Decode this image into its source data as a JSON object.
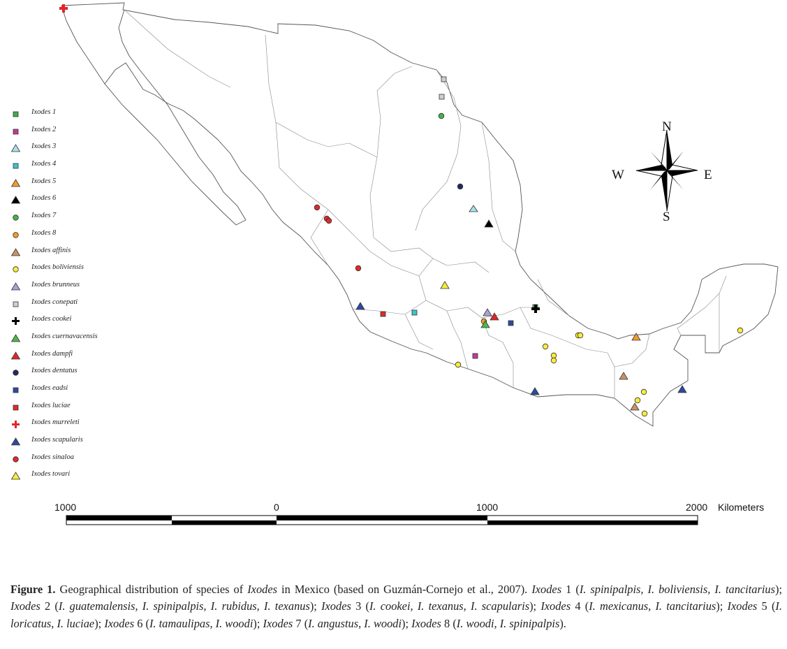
{
  "compass": {
    "n": "N",
    "s": "S",
    "e": "E",
    "w": "W"
  },
  "scale": {
    "ticks": [
      "1000",
      "0",
      "1000",
      "2000"
    ],
    "unit": "Kilometers"
  },
  "legend": [
    {
      "label": "Ixodes 1",
      "shape": "square",
      "color": "#3fae49"
    },
    {
      "label": "Ixodes 2",
      "shape": "square",
      "color": "#c03a9a"
    },
    {
      "label": "Ixodes 3",
      "shape": "triangle",
      "color": "#a9e0ee"
    },
    {
      "label": "Ixodes 4",
      "shape": "square",
      "color": "#3ec4cc"
    },
    {
      "label": "Ixodes 5",
      "shape": "triangle",
      "color": "#f39a2b"
    },
    {
      "label": "Ixodes 6",
      "shape": "triangle",
      "color": "#000000"
    },
    {
      "label": "Ixodes 7",
      "shape": "circle",
      "color": "#47b04a"
    },
    {
      "label": "Ixodes 8",
      "shape": "circle",
      "color": "#f39a2b"
    },
    {
      "label": "Ixodes affinis",
      "shape": "triangle",
      "color": "#c89266"
    },
    {
      "label": "Ixodes boliviensis",
      "shape": "circle",
      "color": "#f7ec3a"
    },
    {
      "label": "Ixodes brunneus",
      "shape": "triangle",
      "color": "#a8a2d6"
    },
    {
      "label": "Ixodes conepati",
      "shape": "square",
      "color": "#cfcfcf"
    },
    {
      "label": "Ixodes cookei",
      "shape": "cross",
      "color": "#000000"
    },
    {
      "label": "Ixodes cuernavacensis",
      "shape": "triangle",
      "color": "#4cb84a"
    },
    {
      "label": "Ixodes dampfi",
      "shape": "triangle",
      "color": "#e0262b"
    },
    {
      "label": "Ixodes dentatus",
      "shape": "circle",
      "color": "#1f2a66"
    },
    {
      "label": "Ixodes eadsi",
      "shape": "square",
      "color": "#2d4aa0"
    },
    {
      "label": "Ixodes luciae",
      "shape": "square",
      "color": "#e02a2a"
    },
    {
      "label": "Ixodes murreleti",
      "shape": "cross",
      "color": "#e0262b"
    },
    {
      "label": "Ixodes scapularis",
      "shape": "triangle",
      "color": "#2d4aa0"
    },
    {
      "label": "Ixodes sinaloa",
      "shape": "circle",
      "color": "#e02a2a"
    },
    {
      "label": "Ixodes tovari",
      "shape": "triangle",
      "color": "#f7ec3a"
    }
  ],
  "caption": {
    "figure_label": "Figure 1.",
    "text_1": " Geographical distribution of species of ",
    "genus": "Ixodes",
    "text_2": " in Mexico (based on Guzmán-Cornejo et al., 2007). ",
    "groups": [
      {
        "name": "Ixodes",
        "num": " 1 (",
        "species": "I. spinipalpis, I. boliviensis, I. tancitarius",
        "end": "); "
      },
      {
        "name": "Ixodes",
        "num": " 2 (",
        "species": "I. guatemalensis, I. spinipalpis, I. rubidus, I. texanus",
        "end": "); "
      },
      {
        "name": "Ixodes",
        "num": " 3 (",
        "species": "I. cookei, I. texanus, I. scapularis",
        "end": "); "
      },
      {
        "name": "Ixodes",
        "num": " 4 (",
        "species": "I. mexicanus, I. tancitarius",
        "end": "); "
      },
      {
        "name": "Ixodes",
        "num": " 5 (",
        "species": "I. loricatus, I. luciae",
        "end": "); "
      },
      {
        "name": "Ixodes",
        "num": " 6 (",
        "species": "I. tamaulipas, I. woodi",
        "end": "); "
      },
      {
        "name": "Ixodes",
        "num": " 7 (",
        "species": "I. angustus, I. woodi",
        "end": "); "
      },
      {
        "name": "Ixodes",
        "num": " 8 (",
        "species": "I. woodi, I. spinipalpis",
        "end": ")."
      }
    ]
  }
}
